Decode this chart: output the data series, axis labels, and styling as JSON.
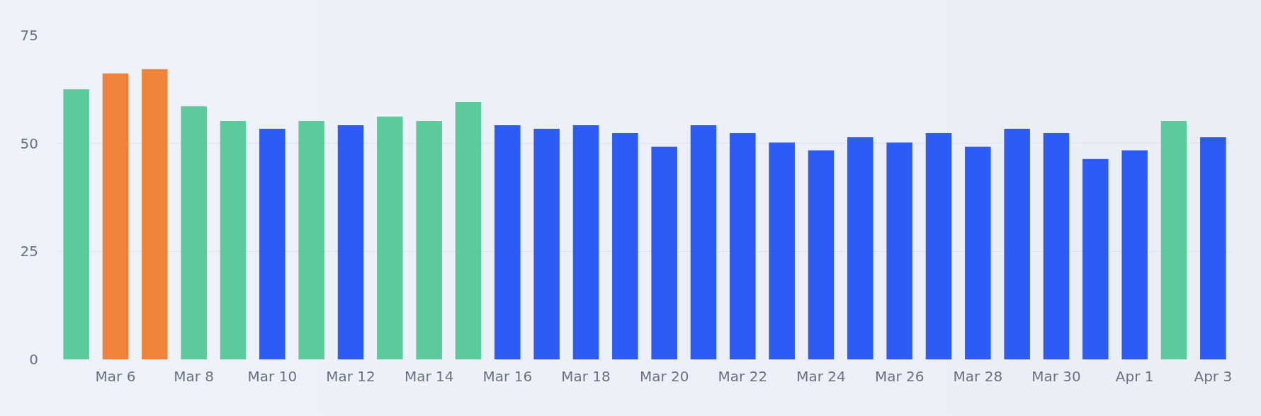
{
  "chart_data": {
    "type": "bar",
    "categories": [
      null,
      "Mar 6",
      null,
      "Mar 8",
      null,
      "Mar 10",
      null,
      "Mar 12",
      null,
      "Mar 14",
      null,
      "Mar 16",
      null,
      "Mar 18",
      null,
      "Mar 20",
      null,
      "Mar 22",
      null,
      "Mar 24",
      null,
      "Mar 26",
      null,
      "Mar 28",
      null,
      "Mar 30",
      null,
      "Apr 1",
      null,
      "Apr 3"
    ],
    "values": [
      62.5,
      66.2,
      67.2,
      58.6,
      55.2,
      53.4,
      55.2,
      54.2,
      56.2,
      55.2,
      59.6,
      54.2,
      53.4,
      54.2,
      52.4,
      49.2,
      54.2,
      52.4,
      50.2,
      48.4,
      51.4,
      50.2,
      52.4,
      49.2,
      53.4,
      52.4,
      46.4,
      48.4,
      55.2,
      51.4
    ],
    "colors": [
      "#5ccb9c",
      "#ef833a",
      "#ef833a",
      "#5ccb9c",
      "#5ccb9c",
      "#2c5bf5",
      "#5ccb9c",
      "#2c5bf5",
      "#5ccb9c",
      "#5ccb9c",
      "#5ccb9c",
      "#2c5bf5",
      "#2c5bf5",
      "#2c5bf5",
      "#2c5bf5",
      "#2c5bf5",
      "#2c5bf5",
      "#2c5bf5",
      "#2c5bf5",
      "#2c5bf5",
      "#2c5bf5",
      "#2c5bf5",
      "#2c5bf5",
      "#2c5bf5",
      "#2c5bf5",
      "#2c5bf5",
      "#2c5bf5",
      "#2c5bf5",
      "#5ccb9c",
      "#2c5bf5"
    ],
    "ylim": [
      0,
      75
    ],
    "yticks": [
      0,
      25,
      50,
      75
    ],
    "grid": "y",
    "legend": false
  }
}
